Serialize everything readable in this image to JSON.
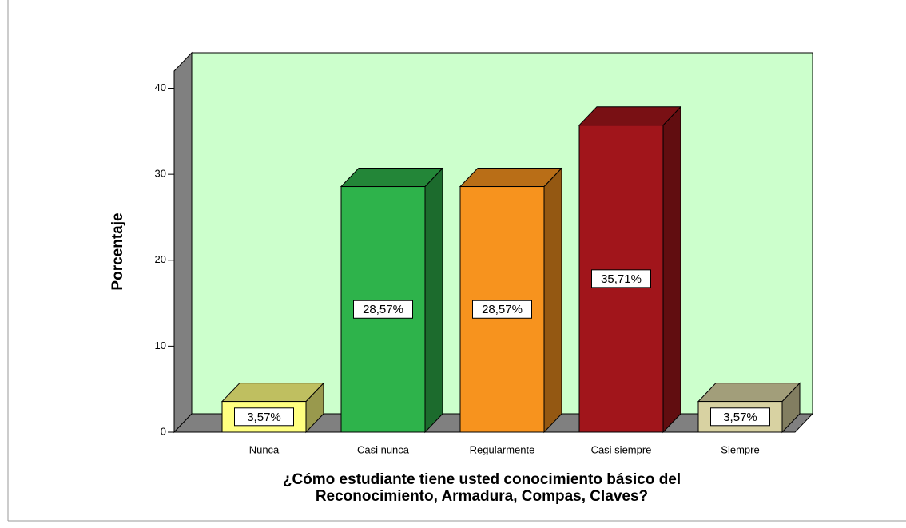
{
  "chart_data": {
    "type": "bar3d",
    "ylabel": "Porcentaje",
    "xlabel": [
      "¿Cómo estudiante tiene usted conocimiento básico del",
      "Reconocimiento, Armadura, Compas, Claves?"
    ],
    "categories": [
      "Nunca",
      "Casi nunca",
      "Regularmente",
      "Casi siempre",
      "Siempre"
    ],
    "values": [
      3.57,
      28.57,
      28.57,
      35.71,
      3.57
    ],
    "value_labels": [
      "3,57%",
      "28,57%",
      "28,57%",
      "35,71%",
      "3,57%"
    ],
    "colors": [
      "#ffff80",
      "#2eb34b",
      "#f7931e",
      "#a1151b",
      "#d8d2a2"
    ],
    "wall_color": "#ccffcc",
    "ylim": [
      0,
      42
    ],
    "yticks": [
      0,
      10,
      20,
      30,
      40
    ]
  }
}
